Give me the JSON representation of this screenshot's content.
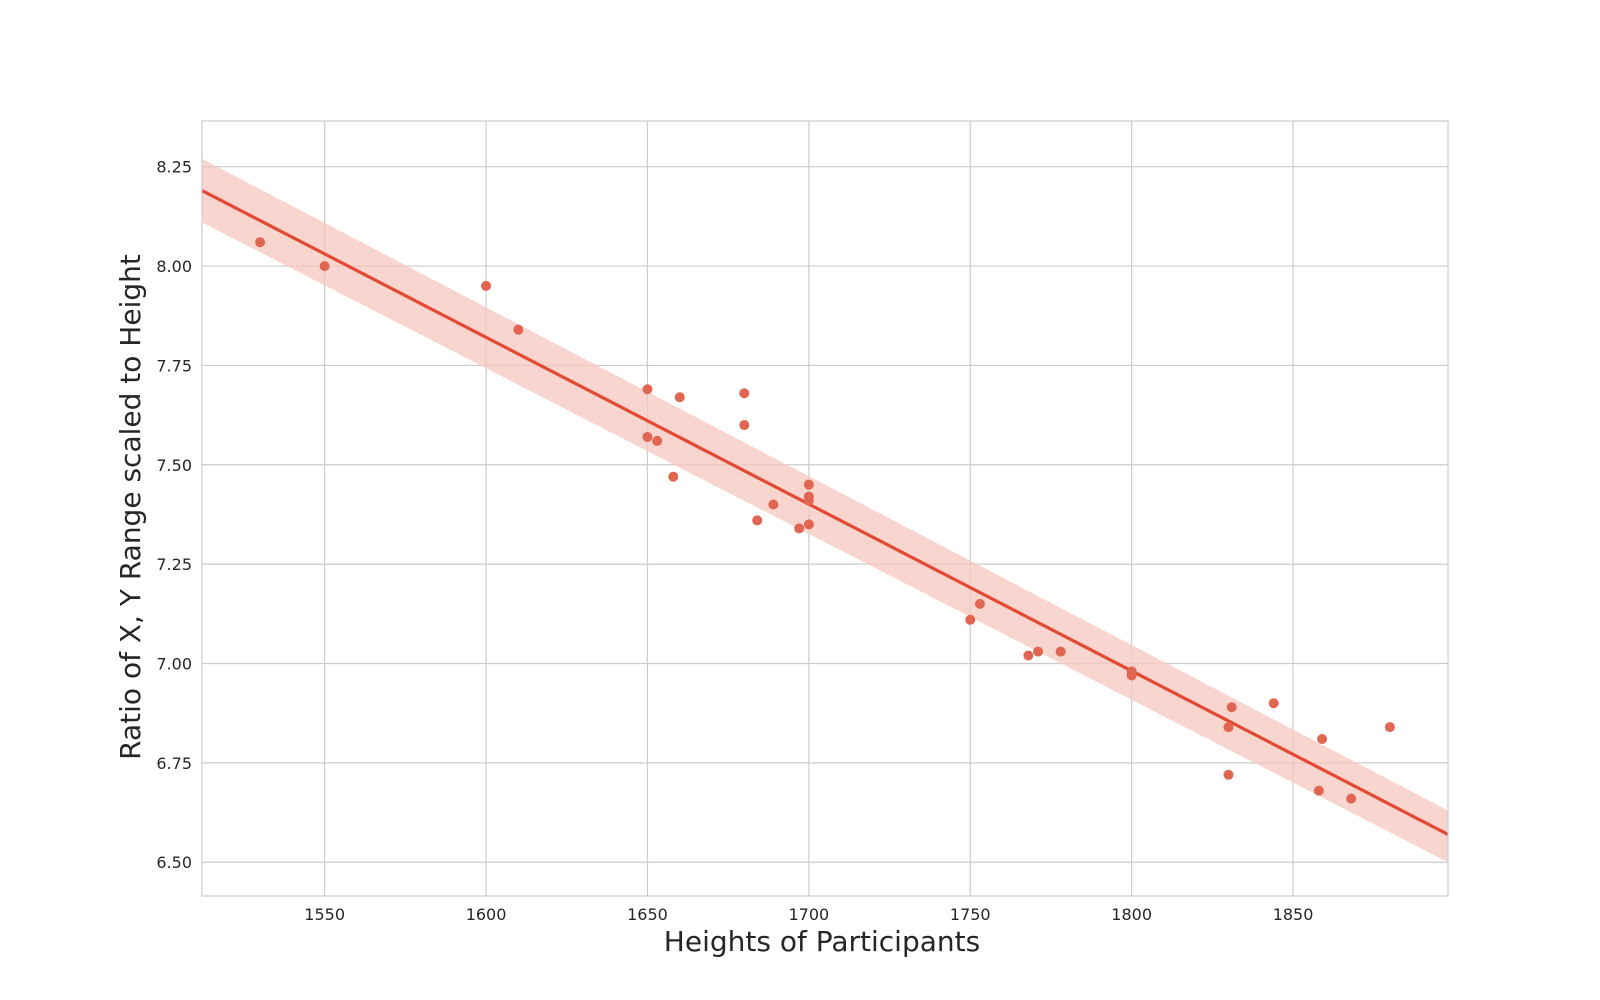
{
  "chart_data": {
    "type": "scatter",
    "title": "",
    "xlabel": "Heights of Participants",
    "ylabel": "Ratio of X, Y Range scaled to Height",
    "xlim": [
      1512,
      1898
    ],
    "ylim": [
      6.415,
      8.365
    ],
    "xticks": [
      1550,
      1600,
      1650,
      1700,
      1750,
      1800,
      1850
    ],
    "xtick_labels": [
      "1550",
      "1600",
      "1650",
      "1700",
      "1750",
      "1800",
      "1850"
    ],
    "yticks": [
      6.5,
      6.75,
      7.0,
      7.25,
      7.5,
      7.75,
      8.0,
      8.25
    ],
    "ytick_labels": [
      "6.50",
      "6.75",
      "7.00",
      "7.25",
      "7.50",
      "7.75",
      "8.00",
      "8.25"
    ],
    "grid": true,
    "legend": "none",
    "points": [
      {
        "x": 1530,
        "y": 8.06
      },
      {
        "x": 1550,
        "y": 8.0
      },
      {
        "x": 1600,
        "y": 7.95
      },
      {
        "x": 1610,
        "y": 7.84
      },
      {
        "x": 1650,
        "y": 7.69
      },
      {
        "x": 1650,
        "y": 7.57
      },
      {
        "x": 1653,
        "y": 7.56
      },
      {
        "x": 1658,
        "y": 7.47
      },
      {
        "x": 1660,
        "y": 7.67
      },
      {
        "x": 1680,
        "y": 7.68
      },
      {
        "x": 1680,
        "y": 7.6
      },
      {
        "x": 1684,
        "y": 7.36
      },
      {
        "x": 1689,
        "y": 7.4
      },
      {
        "x": 1697,
        "y": 7.34
      },
      {
        "x": 1700,
        "y": 7.45
      },
      {
        "x": 1700,
        "y": 7.42
      },
      {
        "x": 1700,
        "y": 7.41
      },
      {
        "x": 1700,
        "y": 7.35
      },
      {
        "x": 1750,
        "y": 7.11
      },
      {
        "x": 1753,
        "y": 7.15
      },
      {
        "x": 1768,
        "y": 7.02
      },
      {
        "x": 1771,
        "y": 7.03
      },
      {
        "x": 1778,
        "y": 7.03
      },
      {
        "x": 1800,
        "y": 6.98
      },
      {
        "x": 1800,
        "y": 6.97
      },
      {
        "x": 1830,
        "y": 6.84
      },
      {
        "x": 1830,
        "y": 6.72
      },
      {
        "x": 1831,
        "y": 6.89
      },
      {
        "x": 1844,
        "y": 6.9
      },
      {
        "x": 1858,
        "y": 6.68
      },
      {
        "x": 1859,
        "y": 6.81
      },
      {
        "x": 1868,
        "y": 6.66
      },
      {
        "x": 1880,
        "y": 6.84
      }
    ],
    "regression": {
      "x": [
        1512,
        1898
      ],
      "y": [
        8.19,
        6.57
      ],
      "ci_upper": [
        8.27,
        6.63
      ],
      "ci_lower": [
        8.11,
        6.5
      ]
    },
    "colors": {
      "points": "#e06652",
      "line": "#e24a33",
      "ci_band": "#f5c7bd",
      "grid": "#cccccc",
      "frame": "#cccccc"
    }
  }
}
